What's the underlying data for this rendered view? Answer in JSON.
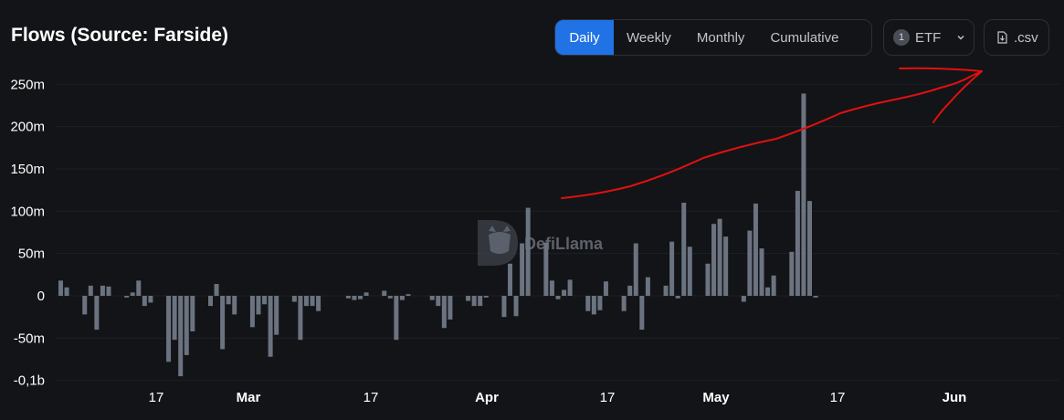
{
  "header": {
    "title": "Flows (Source: Farside)",
    "tabs": [
      {
        "label": "Daily",
        "active": true
      },
      {
        "label": "Weekly",
        "active": false
      },
      {
        "label": "Monthly",
        "active": false
      },
      {
        "label": "Cumulative",
        "active": false
      }
    ],
    "filter": {
      "count": "1",
      "label": "ETF"
    },
    "download_label": ".csv"
  },
  "watermark": "DefiLlama",
  "colors": {
    "bar": "#6b7380",
    "background": "#131417",
    "accent": "#2172e5",
    "annotation": "#e01010"
  },
  "chart_data": {
    "type": "bar",
    "y_tick_labels": [
      "250m",
      "200m",
      "150m",
      "100m",
      "50m",
      "0",
      "-50m",
      "-0,1b"
    ],
    "x_tick_labels": [
      "17",
      "Mar",
      "17",
      "Apr",
      "17",
      "May",
      "17",
      "Jun"
    ],
    "ylim": [
      -100,
      250
    ],
    "units": "millions USD",
    "series": [
      {
        "values": [
          18,
          10,
          0,
          0,
          -22,
          12,
          -40,
          12,
          11,
          0,
          0,
          -2,
          4,
          18,
          -12,
          -8,
          0,
          0,
          -78,
          -52,
          -95,
          -70,
          -42,
          0,
          0,
          -12,
          14,
          -63,
          -10,
          -22,
          0,
          0,
          -37,
          -22,
          -10,
          -72,
          -46,
          0,
          0,
          -7,
          -52,
          -12,
          -12,
          -18,
          0,
          0,
          0,
          0,
          -3,
          -5,
          -4,
          4,
          0,
          0,
          6,
          -3,
          -52,
          -5,
          2,
          0,
          0,
          0,
          -5,
          -12,
          -38,
          -28,
          0,
          0,
          -6,
          -12,
          -12,
          -2,
          0,
          0,
          -25,
          38,
          -24,
          62,
          104,
          0,
          0,
          63,
          18,
          -4,
          7,
          19,
          0,
          0,
          -18,
          -22,
          -17,
          17,
          0,
          0,
          -18,
          12,
          62,
          -40,
          22,
          0,
          0,
          12,
          64,
          -3,
          110,
          58,
          0,
          0,
          38,
          85,
          91,
          70,
          0,
          0,
          -7,
          77,
          109,
          56,
          10,
          24,
          0,
          0,
          52,
          124,
          239,
          112,
          -2
        ]
      }
    ]
  }
}
